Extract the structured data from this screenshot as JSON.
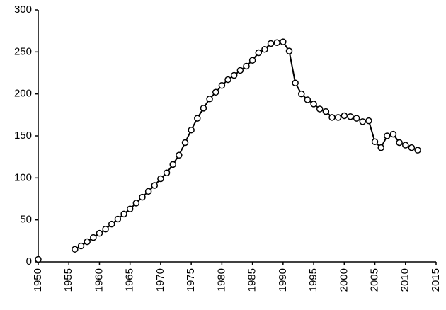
{
  "chart_data": {
    "type": "line",
    "series": [
      {
        "color": "#000000",
        "x": [
          1950
        ],
        "values": [
          3
        ]
      },
      {
        "color": "#000000",
        "x": [
          1956,
          1957,
          1958,
          1959,
          1960,
          1961,
          1962,
          1963,
          1964,
          1965,
          1966,
          1967,
          1968,
          1969,
          1970,
          1971,
          1972,
          1973,
          1974,
          1975,
          1976,
          1977,
          1978,
          1979,
          1980,
          1981,
          1982,
          1983,
          1984,
          1985,
          1986,
          1987,
          1988,
          1989,
          1990,
          1991,
          1992,
          1993,
          1994,
          1995,
          1996,
          1997,
          1998,
          1999,
          2000,
          2001,
          2002,
          2003,
          2004,
          2005,
          2006,
          2007,
          2008,
          2009,
          2010,
          2011,
          2012
        ],
        "values": [
          15,
          19,
          24,
          29,
          34,
          39,
          45,
          51,
          57,
          63,
          70,
          77,
          84,
          91,
          99,
          106,
          116,
          127,
          142,
          157,
          171,
          183,
          194,
          202,
          210,
          217,
          222,
          228,
          233,
          240,
          249,
          253,
          260,
          261,
          262,
          251,
          213,
          200,
          193,
          188,
          182,
          179,
          172,
          172,
          174,
          173,
          171,
          167,
          168,
          143,
          136,
          150,
          152,
          142,
          139,
          136,
          133
        ]
      }
    ],
    "xlim": [
      1950,
      2015
    ],
    "xticks": [
      1950,
      1955,
      1960,
      1965,
      1970,
      1975,
      1980,
      1985,
      1990,
      1995,
      2000,
      2005,
      2010,
      2015
    ],
    "ylim": [
      0,
      300
    ],
    "yticks": [
      0,
      50,
      100,
      150,
      200,
      250,
      300
    ]
  }
}
